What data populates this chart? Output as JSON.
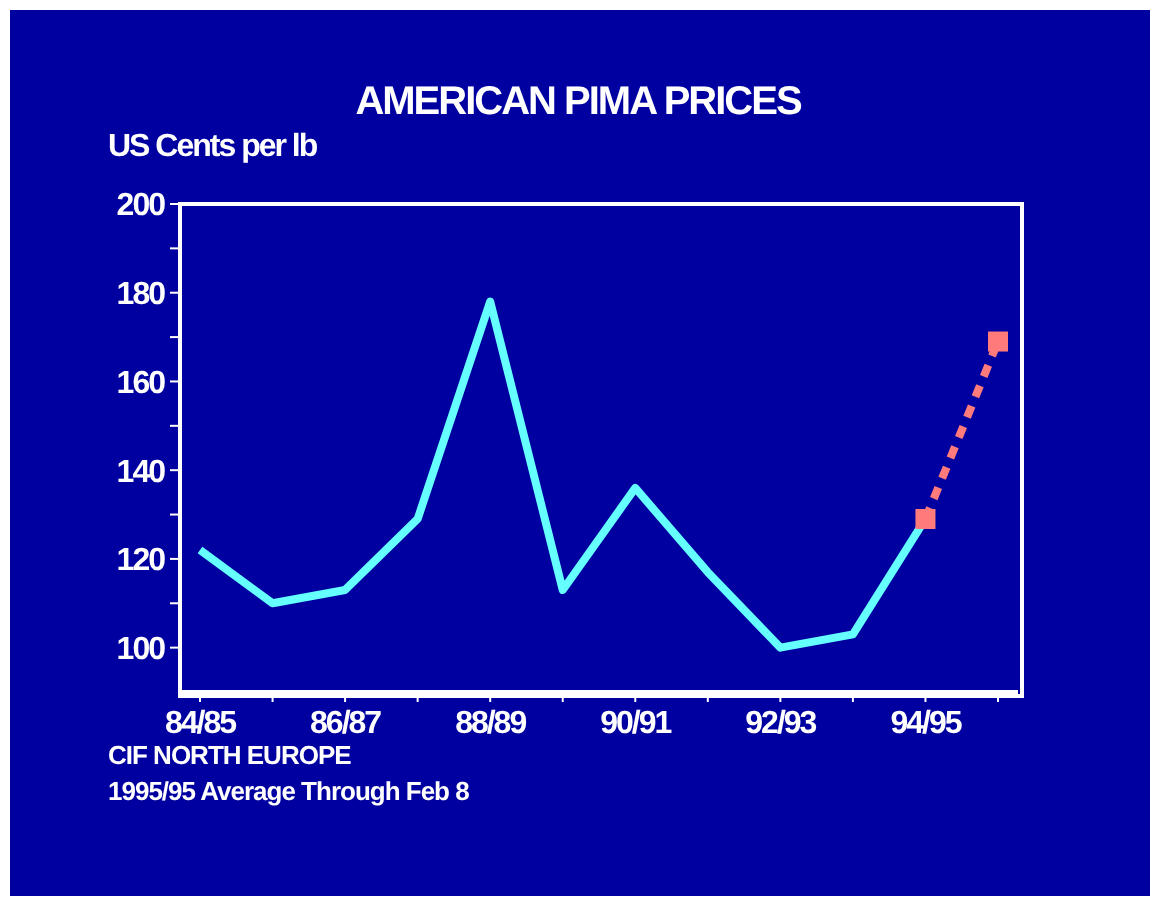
{
  "chart_data": {
    "type": "line",
    "title": "AMERICAN PIMA PRICES",
    "ylabel": "US Cents per lb",
    "annotations": [
      "CIF NORTH EUROPE",
      "1995/95 Average Through Feb 8"
    ],
    "categories": [
      "84/85",
      null,
      "86/87",
      null,
      "88/89",
      null,
      "90/91",
      null,
      "92/93",
      null,
      "94/95",
      null
    ],
    "series": [
      {
        "type": "line",
        "color": "#66ffff",
        "marker": "none",
        "line_style": "solid",
        "values": [
          122,
          110,
          113,
          129,
          178,
          113,
          136,
          117,
          100,
          103,
          129,
          null
        ]
      },
      {
        "type": "line",
        "color": "#ff7b7b",
        "marker": "square",
        "line_style": "dashed",
        "values": [
          null,
          null,
          null,
          null,
          null,
          null,
          null,
          null,
          null,
          null,
          129,
          169
        ]
      }
    ],
    "ylim": [
      90,
      200
    ],
    "yticks": [
      100,
      {
        "value": 110,
        "label": null
      },
      120,
      {
        "value": 130,
        "label": null
      },
      140,
      {
        "value": 150,
        "label": null
      },
      160,
      {
        "value": 170,
        "label": null
      },
      180,
      {
        "value": 190,
        "label": null
      },
      200
    ]
  }
}
